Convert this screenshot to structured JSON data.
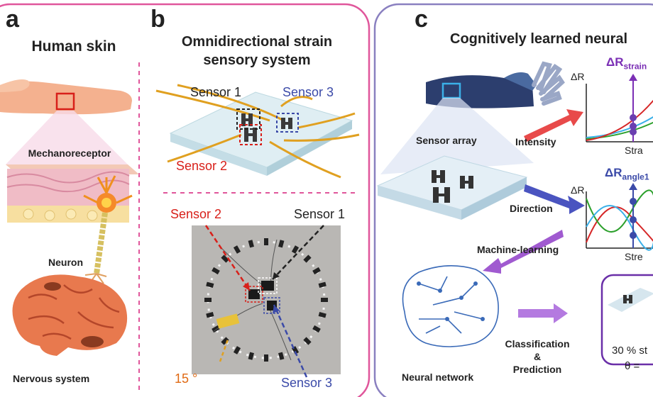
{
  "panel_a": {
    "letter": "a",
    "title": "Human skin",
    "mechanoreceptor": "Mechanoreceptor",
    "neuron": "Neuron",
    "nervous_system": "Nervous system"
  },
  "panel_b": {
    "letter": "b",
    "title_line1": "Omnidirectional strain",
    "title_line2": "sensory system",
    "sensor1": "Sensor 1",
    "sensor2": "Sensor 2",
    "sensor3": "Sensor 3",
    "photo_sensor2": "Sensor 2",
    "photo_sensor1": "Sensor 1",
    "photo_sensor3": "Sensor 3",
    "angle": "15 °"
  },
  "panel_c": {
    "letter": "c",
    "title": "Cognitively learned neural",
    "sensor_array": "Sensor array",
    "intensity": "Intensity",
    "direction": "Direction",
    "machine_learning": "Machine-learning",
    "neural_network": "Neural network",
    "classification": "Classification",
    "amp": "&",
    "prediction": "Prediction",
    "plot1_ylabel": "ΔR",
    "plot1_marker_main": "ΔR",
    "plot1_marker_sub": "strain",
    "plot1_xlabel": "Stra",
    "plot2_ylabel": "ΔR",
    "plot2_marker_main": "ΔR",
    "plot2_marker_sub": "angle1",
    "plot2_xlabel": "Stre",
    "result_line1": "30 % st",
    "result_line2": "θ = "
  },
  "colors": {
    "pink_border": "#e0569b",
    "purple_border": "#7c6fb0",
    "red": "#e0302a",
    "blue": "#3b4aa8",
    "purple": "#7b2fb5",
    "orange": "#e06a14",
    "gold": "#e0a020"
  }
}
